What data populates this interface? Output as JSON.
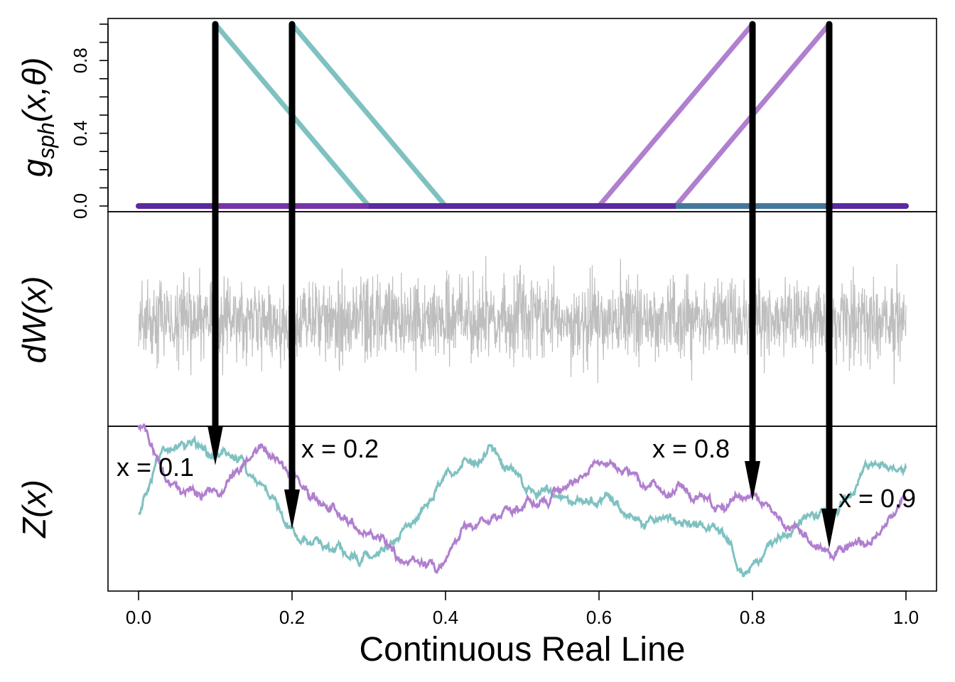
{
  "chart_data": [
    {
      "type": "line",
      "panel": "top",
      "ylabel_base": "g",
      "ylabel_sub": "sph",
      "ylabel_args": "(x,θ)",
      "yticks": [
        0.0,
        0.4,
        0.8
      ],
      "ytick_labels": [
        "0.0",
        "0.4",
        "0.8"
      ],
      "ylim": [
        0,
        1
      ],
      "xlim": [
        0,
        1
      ],
      "series": [
        {
          "color": "#7fc1c1",
          "x": [
            0.0,
            0.1,
            0.1,
            0.3,
            1.0
          ],
          "y": [
            0,
            0,
            1,
            0,
            0
          ]
        },
        {
          "color": "#7fc1c1",
          "x": [
            0.0,
            0.2,
            0.2,
            0.4,
            1.0
          ],
          "y": [
            0,
            0,
            1,
            0,
            0
          ]
        },
        {
          "color": "#b07fcf",
          "x": [
            0.0,
            0.6,
            0.8,
            0.8,
            1.0
          ],
          "y": [
            0,
            0,
            1,
            0,
            0
          ]
        },
        {
          "color": "#b07fcf",
          "x": [
            0.0,
            0.7,
            0.9,
            0.9,
            1.0
          ],
          "y": [
            0,
            0,
            1,
            0,
            0
          ]
        }
      ],
      "baseline_color": "#5b2a9e"
    },
    {
      "type": "line",
      "panel": "middle",
      "ylabel": "dW(x)",
      "description_color": "#bebebe",
      "xlim": [
        0,
        1
      ]
    },
    {
      "type": "line",
      "panel": "bottom",
      "ylabel": "Z(x)",
      "xlabel": "Continuous Real Line",
      "xticks": [
        0.0,
        0.2,
        0.4,
        0.6,
        0.8,
        1.0
      ],
      "xtick_labels": [
        "0.0",
        "0.2",
        "0.4",
        "0.6",
        "0.8",
        "1.0"
      ],
      "xlim": [
        0,
        1
      ],
      "series_colors": [
        "#7fc1c1",
        "#b07fcf"
      ],
      "annotations": [
        {
          "text": "x = 0.1",
          "x": 0.1
        },
        {
          "text": "x = 0.2",
          "x": 0.2
        },
        {
          "text": "x = 0.8",
          "x": 0.8
        },
        {
          "text": "x = 0.9",
          "x": 0.9
        }
      ]
    }
  ]
}
